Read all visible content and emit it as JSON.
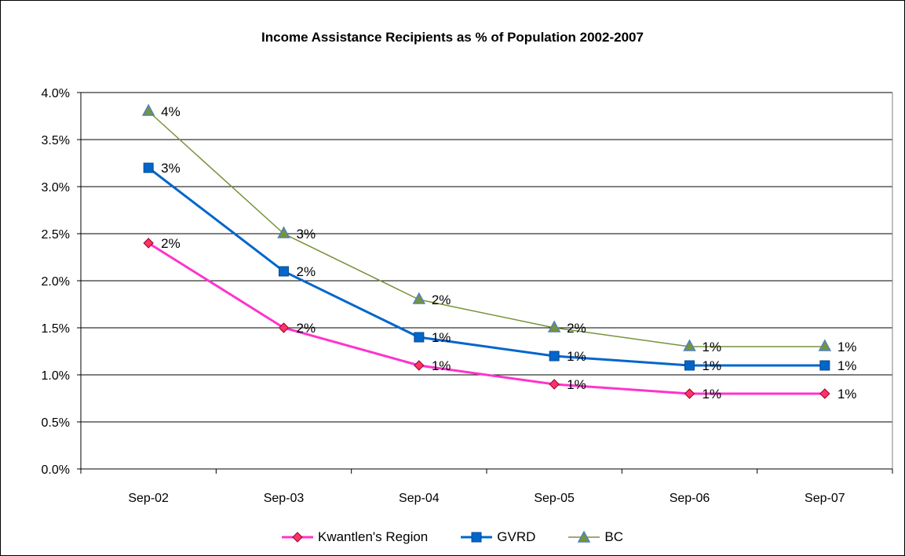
{
  "chart_data": {
    "type": "line",
    "title": "Income Assistance Recipients as % of Population  2002-2007",
    "categories": [
      "Sep-02",
      "Sep-03",
      "Sep-04",
      "Sep-05",
      "Sep-06",
      "Sep-07"
    ],
    "ylim": [
      0,
      4.0
    ],
    "yticks": [
      "0.0%",
      "0.5%",
      "1.0%",
      "1.5%",
      "2.0%",
      "2.5%",
      "3.0%",
      "3.5%",
      "4.0%"
    ],
    "grid": "horizontal",
    "legend_position": "bottom",
    "series": [
      {
        "name": "Kwantlen's Region",
        "color": "#ff33cc",
        "marker": "diamond",
        "marker_fill": "#ff3366",
        "values": [
          2.4,
          1.5,
          1.1,
          0.9,
          0.8,
          0.8
        ],
        "labels": [
          "2%",
          "2%",
          "1%",
          "1%",
          "1%",
          "1%"
        ]
      },
      {
        "name": "GVRD",
        "color": "#0066cc",
        "marker": "square",
        "marker_fill": "#0066cc",
        "values": [
          3.2,
          2.1,
          1.4,
          1.2,
          1.1,
          1.1
        ],
        "labels": [
          "3%",
          "2%",
          "1%",
          "1%",
          "1%",
          "1%"
        ]
      },
      {
        "name": "BC",
        "color": "#77933c",
        "marker": "triangle",
        "marker_fill": "#77933c",
        "marker_stroke": "#4f81bd",
        "values": [
          3.8,
          2.5,
          1.8,
          1.5,
          1.3,
          1.3
        ],
        "labels": [
          "4%",
          "3%",
          "2%",
          "2%",
          "1%",
          "1%"
        ]
      }
    ]
  }
}
